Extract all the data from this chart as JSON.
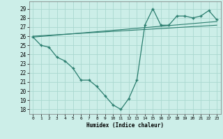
{
  "line1_x": [
    0,
    1,
    2,
    3,
    4,
    5,
    6,
    7,
    8,
    9,
    10,
    11,
    12,
    13,
    14,
    15,
    16,
    17,
    18,
    19,
    20,
    21,
    22,
    23
  ],
  "line1_y": [
    25.9,
    25.0,
    24.8,
    23.7,
    23.3,
    22.5,
    21.2,
    21.2,
    20.5,
    19.5,
    18.5,
    18.0,
    19.2,
    21.2,
    27.2,
    29.0,
    27.2,
    27.2,
    28.2,
    28.2,
    28.0,
    28.2,
    28.8,
    27.8
  ],
  "line2_x": [
    0,
    23
  ],
  "line2_y": [
    25.9,
    27.6
  ],
  "line3_x": [
    0,
    23
  ],
  "line3_y": [
    26.0,
    27.2
  ],
  "color": "#2a7d6e",
  "bg_color": "#cceee8",
  "grid_color": "#aad8d0",
  "xlabel": "Humidex (Indice chaleur)",
  "ylim": [
    17.5,
    29.8
  ],
  "xlim": [
    -0.5,
    23.5
  ],
  "yticks": [
    18,
    19,
    20,
    21,
    22,
    23,
    24,
    25,
    26,
    27,
    28,
    29
  ],
  "xticks": [
    0,
    1,
    2,
    3,
    4,
    5,
    6,
    7,
    8,
    9,
    10,
    11,
    12,
    13,
    14,
    15,
    16,
    17,
    18,
    19,
    20,
    21,
    22,
    23
  ]
}
